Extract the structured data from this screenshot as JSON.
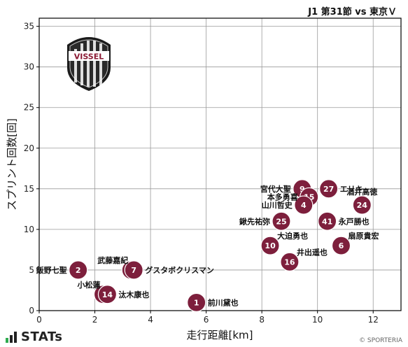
{
  "title": "J1 第31節 vs 東京Ｖ",
  "brand": "STATs",
  "copyright": "© SPORTERIA",
  "colors": {
    "marker": "#7d1f3c",
    "marker_edge": "#ffffff",
    "grid": "#9a9a9a",
    "brand_bar_green": "#2eaa4f",
    "brand_bar_dark": "#222222"
  },
  "crest": {
    "text": "VISSEL",
    "icon": "vissel-kobe-crest-icon"
  },
  "chart_data": {
    "type": "scatter",
    "xlabel": "走行距離[km]",
    "ylabel": "スプリント回数[回]",
    "xlim": [
      0,
      13
    ],
    "ylim": [
      0,
      36
    ],
    "xticks": [
      0,
      2,
      4,
      6,
      8,
      10,
      12
    ],
    "yticks": [
      0,
      5,
      10,
      15,
      20,
      25,
      30,
      35
    ],
    "grid": true,
    "points": [
      {
        "number": "2",
        "name": "飯野七聖",
        "x": 1.4,
        "y": 5,
        "label_pos": "left"
      },
      {
        "number": "17",
        "name": "武藤嘉紀",
        "x": 3.3,
        "y": 5,
        "label_pos": "left-up"
      },
      {
        "number": "7",
        "name": "グスタボクリスマン",
        "x": 3.4,
        "y": 5,
        "label_pos": "right"
      },
      {
        "number": "29",
        "name": "小松蓮",
        "x": 2.3,
        "y": 2,
        "label_pos": "left-up"
      },
      {
        "number": "14",
        "name": "汰木康也",
        "x": 2.45,
        "y": 2,
        "label_pos": "right"
      },
      {
        "number": "1",
        "name": "前川黛也",
        "x": 5.65,
        "y": 1,
        "label_pos": "right"
      },
      {
        "number": "9",
        "name": "宮代大聖",
        "x": 9.45,
        "y": 15,
        "label_pos": "left"
      },
      {
        "number": "27",
        "name": "エリキ",
        "x": 10.4,
        "y": 15,
        "label_pos": "right"
      },
      {
        "number": "15",
        "name": "本多勇喜",
        "x": 9.7,
        "y": 14,
        "label_pos": "left"
      },
      {
        "number": "4",
        "name": "山川哲史",
        "x": 9.5,
        "y": 13,
        "label_pos": "left"
      },
      {
        "number": "24",
        "name": "酒井高徳",
        "x": 11.6,
        "y": 13,
        "label_pos": "up"
      },
      {
        "number": "25",
        "name": "鍬先祐弥",
        "x": 8.7,
        "y": 11,
        "label_pos": "left"
      },
      {
        "number": "41",
        "name": "永戸勝也",
        "x": 10.35,
        "y": 11,
        "label_pos": "right"
      },
      {
        "number": "10",
        "name": "大迫勇也",
        "x": 8.3,
        "y": 8,
        "label_pos": "right-up"
      },
      {
        "number": "6",
        "name": "扇原貴宏",
        "x": 10.85,
        "y": 8,
        "label_pos": "right-up"
      },
      {
        "number": "16",
        "name": "井出遥也",
        "x": 9.0,
        "y": 6,
        "label_pos": "right-up"
      }
    ]
  }
}
